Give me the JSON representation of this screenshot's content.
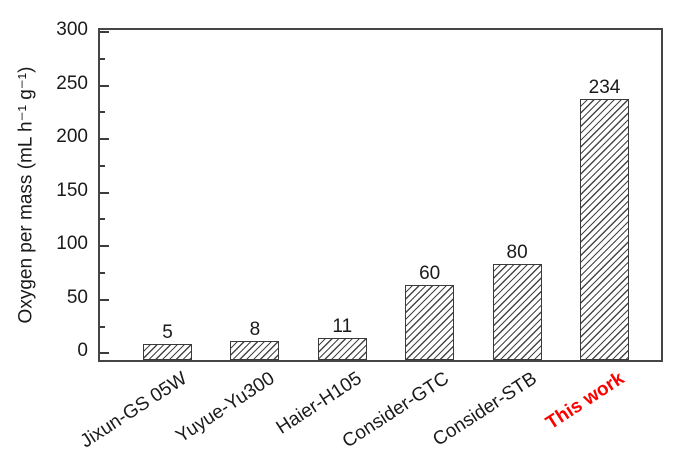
{
  "chart_data": {
    "type": "bar",
    "categories": [
      "Jixun-GS 05W",
      "Yuyue-Yu300",
      "Haier-H105",
      "Consider-GTC",
      "Consider-STB",
      "This work"
    ],
    "values": [
      5,
      8,
      11,
      60,
      80,
      234
    ],
    "value_labels": [
      "5",
      "8",
      "11",
      "60",
      "80",
      "234"
    ],
    "title": "",
    "xlabel": "",
    "ylabel": "Oxygen per mass (mL h⁻¹ g⁻¹)",
    "ylim": [
      0,
      300
    ],
    "y_ticks": [
      0,
      50,
      100,
      150,
      200,
      250,
      300
    ],
    "y_tick_labels": [
      "0",
      "50",
      "100",
      "150",
      "200",
      "250",
      "300"
    ],
    "y_minor_ticks": [
      25,
      75,
      125,
      175,
      225,
      275
    ],
    "grid": false,
    "legend": "none",
    "bar_style": "white fill with forward-diagonal black hatch",
    "highlight_category": "This work",
    "highlight_color": "#ff0000",
    "axis_color": "#454545",
    "text_color": "#1a1a1a"
  }
}
